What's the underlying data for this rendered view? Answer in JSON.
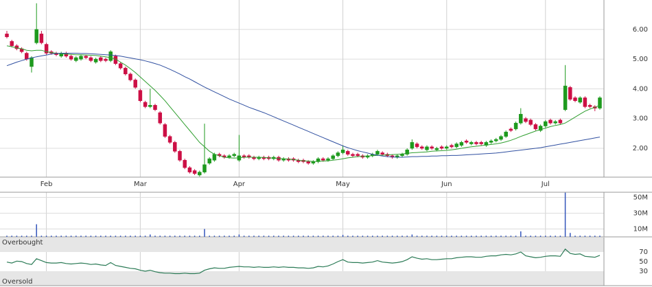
{
  "chart_data": [
    {
      "type": "candlestick",
      "categories": [
        null,
        null,
        null,
        null,
        null,
        null,
        null,
        null,
        "Feb",
        null,
        null,
        null,
        null,
        null,
        null,
        null,
        null,
        null,
        null,
        null,
        null,
        null,
        null,
        null,
        null,
        null,
        null,
        "Mar",
        null,
        null,
        null,
        null,
        null,
        null,
        null,
        null,
        null,
        null,
        null,
        null,
        null,
        null,
        null,
        null,
        null,
        null,
        null,
        "Apr",
        null,
        null,
        null,
        null,
        null,
        null,
        null,
        null,
        null,
        null,
        null,
        null,
        null,
        null,
        null,
        null,
        null,
        null,
        null,
        null,
        "May",
        null,
        null,
        null,
        null,
        null,
        null,
        null,
        null,
        null,
        null,
        null,
        null,
        null,
        null,
        null,
        null,
        null,
        null,
        null,
        null,
        "Jun",
        null,
        null,
        null,
        null,
        null,
        null,
        null,
        null,
        null,
        null,
        null,
        null,
        null,
        null,
        null,
        null,
        null,
        null,
        null,
        "Jul",
        null,
        null,
        null,
        null,
        null,
        null,
        null,
        null,
        null,
        null,
        null
      ],
      "open": [
        5.85,
        5.6,
        5.45,
        5.35,
        5.2,
        4.75,
        5.55,
        5.85,
        5.5,
        5.25,
        5.2,
        5.1,
        5.2,
        5.1,
        4.95,
        5.0,
        5.1,
        5.05,
        4.9,
        5.05,
        5.0,
        4.95,
        5.1,
        4.85,
        4.7,
        4.5,
        4.3,
        3.95,
        3.55,
        3.4,
        3.45,
        3.2,
        2.8,
        2.4,
        2.2,
        1.9,
        1.6,
        1.35,
        1.25,
        1.1,
        1.2,
        1.5,
        1.6,
        1.8,
        1.75,
        1.7,
        1.75,
        1.6,
        1.75,
        1.75,
        1.7,
        1.65,
        1.7,
        1.7,
        1.65,
        1.7,
        1.6,
        1.65,
        1.65,
        1.6,
        1.6,
        1.55,
        1.5,
        1.55,
        1.65,
        1.6,
        1.65,
        1.75,
        1.85,
        1.9,
        1.8,
        1.8,
        1.75,
        1.7,
        1.75,
        1.8,
        1.85,
        1.8,
        1.75,
        1.7,
        1.75,
        1.8,
        2.0,
        2.15,
        2.05,
        1.95,
        2.05,
        1.95,
        2.05,
        2.0,
        2.1,
        2.05,
        2.1,
        2.25,
        2.15,
        2.2,
        2.2,
        2.1,
        2.2,
        2.25,
        2.3,
        2.4,
        2.65,
        2.65,
        2.85,
        3.0,
        2.95,
        2.8,
        2.6,
        2.75,
        2.95,
        2.85,
        2.95,
        3.3,
        4.05,
        3.7,
        3.55,
        3.7,
        3.45,
        3.4,
        3.35
      ],
      "high": [
        5.95,
        5.65,
        5.5,
        5.4,
        5.25,
        5.1,
        6.88,
        5.95,
        5.55,
        5.3,
        5.25,
        5.25,
        5.25,
        5.15,
        5.1,
        5.15,
        5.15,
        5.1,
        5.05,
        5.1,
        5.05,
        5.3,
        5.15,
        4.9,
        4.75,
        4.55,
        4.35,
        4.0,
        3.6,
        4.0,
        3.5,
        3.25,
        2.85,
        2.45,
        2.25,
        1.95,
        1.65,
        1.4,
        1.3,
        1.25,
        2.83,
        1.7,
        1.85,
        1.85,
        1.8,
        1.8,
        1.85,
        2.45,
        1.8,
        1.8,
        1.75,
        1.75,
        1.75,
        1.75,
        1.75,
        1.75,
        1.7,
        1.7,
        1.7,
        1.65,
        1.65,
        1.6,
        1.6,
        1.7,
        1.7,
        1.7,
        1.8,
        1.9,
        2.1,
        1.95,
        1.85,
        1.85,
        1.8,
        1.8,
        1.85,
        1.95,
        1.9,
        1.85,
        1.8,
        1.8,
        1.85,
        2.0,
        2.3,
        2.2,
        2.1,
        2.1,
        2.1,
        2.05,
        2.1,
        2.1,
        2.15,
        2.2,
        2.25,
        2.3,
        2.25,
        2.25,
        2.25,
        2.25,
        2.3,
        2.35,
        2.45,
        2.6,
        2.7,
        2.9,
        3.35,
        3.05,
        3.0,
        2.85,
        2.8,
        2.95,
        3.0,
        2.95,
        3.0,
        4.8,
        4.1,
        3.75,
        3.75,
        3.75,
        3.5,
        3.45,
        3.75
      ],
      "low": [
        5.7,
        5.4,
        5.3,
        5.2,
        4.95,
        4.55,
        5.5,
        5.5,
        5.15,
        5.15,
        5.1,
        5.05,
        5.05,
        4.95,
        4.9,
        4.95,
        5.0,
        4.9,
        4.85,
        4.9,
        4.9,
        4.9,
        4.8,
        4.65,
        4.45,
        4.25,
        4.0,
        3.55,
        3.35,
        3.35,
        3.25,
        2.8,
        2.35,
        2.15,
        1.85,
        1.55,
        1.3,
        1.15,
        1.1,
        1.05,
        1.15,
        1.45,
        1.55,
        1.7,
        1.65,
        1.65,
        1.7,
        1.55,
        1.65,
        1.65,
        1.6,
        1.6,
        1.6,
        1.6,
        1.6,
        1.55,
        1.55,
        1.55,
        1.55,
        1.5,
        1.5,
        1.45,
        1.45,
        1.5,
        1.55,
        1.55,
        1.6,
        1.7,
        1.8,
        1.75,
        1.7,
        1.7,
        1.65,
        1.65,
        1.7,
        1.75,
        1.75,
        1.7,
        1.65,
        1.65,
        1.7,
        1.75,
        1.95,
        2.0,
        1.95,
        1.9,
        1.95,
        1.9,
        1.95,
        1.95,
        2.0,
        2.0,
        2.05,
        2.15,
        2.1,
        2.1,
        2.1,
        2.05,
        2.15,
        2.2,
        2.25,
        2.35,
        2.55,
        2.6,
        2.8,
        2.85,
        2.75,
        2.6,
        2.55,
        2.7,
        2.8,
        2.8,
        2.8,
        3.25,
        3.6,
        3.55,
        3.5,
        3.35,
        3.35,
        3.25,
        3.3
      ],
      "close": [
        5.75,
        5.45,
        5.35,
        5.25,
        5.0,
        5.05,
        6.0,
        5.55,
        5.2,
        5.2,
        5.15,
        5.2,
        5.1,
        5.0,
        5.05,
        5.1,
        5.05,
        4.95,
        5.0,
        4.95,
        4.95,
        5.25,
        4.85,
        4.7,
        4.5,
        4.3,
        4.05,
        3.6,
        3.4,
        3.45,
        3.3,
        2.85,
        2.4,
        2.2,
        1.9,
        1.6,
        1.35,
        1.2,
        1.15,
        1.2,
        1.45,
        1.65,
        1.8,
        1.75,
        1.7,
        1.75,
        1.8,
        1.75,
        1.7,
        1.7,
        1.65,
        1.7,
        1.65,
        1.65,
        1.7,
        1.6,
        1.65,
        1.6,
        1.6,
        1.55,
        1.55,
        1.5,
        1.55,
        1.65,
        1.6,
        1.65,
        1.75,
        1.85,
        1.95,
        1.8,
        1.75,
        1.75,
        1.7,
        1.75,
        1.8,
        1.9,
        1.8,
        1.75,
        1.7,
        1.75,
        1.8,
        1.95,
        2.2,
        2.05,
        2.0,
        2.05,
        2.0,
        2.0,
        2.0,
        2.05,
        2.05,
        2.15,
        2.2,
        2.2,
        2.2,
        2.15,
        2.15,
        2.2,
        2.25,
        2.3,
        2.4,
        2.55,
        2.6,
        2.85,
        3.15,
        2.9,
        2.8,
        2.65,
        2.75,
        2.9,
        2.85,
        2.9,
        2.85,
        4.1,
        3.65,
        3.6,
        3.7,
        3.4,
        3.4,
        3.35,
        3.7
      ],
      "up_color": "#1e9a1e",
      "down_color": "#cc0f45",
      "series": [
        {
          "color": "#2e9e2e",
          "values": [
            5.45,
            5.42,
            5.38,
            5.35,
            5.3,
            5.28,
            5.3,
            5.3,
            5.25,
            5.22,
            5.2,
            5.18,
            5.17,
            5.16,
            5.15,
            5.15,
            5.14,
            5.13,
            5.12,
            5.1,
            5.08,
            5.05,
            5.0,
            4.9,
            4.8,
            4.68,
            4.55,
            4.4,
            4.25,
            4.1,
            3.95,
            3.78,
            3.6,
            3.4,
            3.2,
            3.0,
            2.8,
            2.6,
            2.4,
            2.2,
            2.05,
            1.9,
            1.8,
            1.75,
            1.7,
            1.68,
            1.67,
            1.68,
            1.7,
            1.7,
            1.7,
            1.7,
            1.69,
            1.68,
            1.67,
            1.66,
            1.65,
            1.64,
            1.62,
            1.6,
            1.58,
            1.57,
            1.56,
            1.56,
            1.57,
            1.58,
            1.6,
            1.62,
            1.65,
            1.68,
            1.7,
            1.72,
            1.73,
            1.74,
            1.75,
            1.76,
            1.77,
            1.78,
            1.79,
            1.8,
            1.81,
            1.83,
            1.85,
            1.86,
            1.87,
            1.88,
            1.9,
            1.91,
            1.92,
            1.93,
            1.95,
            1.97,
            2.0,
            2.03,
            2.05,
            2.07,
            2.09,
            2.11,
            2.13,
            2.15,
            2.18,
            2.22,
            2.27,
            2.33,
            2.4,
            2.46,
            2.52,
            2.58,
            2.63,
            2.68,
            2.73,
            2.77,
            2.8,
            2.85,
            2.95,
            3.05,
            3.15,
            3.25,
            3.32,
            3.38,
            3.45
          ]
        },
        {
          "color": "#2f4fa0",
          "values": [
            4.78,
            4.84,
            4.9,
            4.95,
            5.0,
            5.04,
            5.08,
            5.11,
            5.14,
            5.17,
            5.19,
            5.2,
            5.2,
            5.2,
            5.2,
            5.19,
            5.19,
            5.18,
            5.17,
            5.16,
            5.15,
            5.14,
            5.12,
            5.1,
            5.07,
            5.04,
            5.01,
            4.98,
            4.94,
            4.9,
            4.85,
            4.8,
            4.73,
            4.66,
            4.58,
            4.5,
            4.41,
            4.33,
            4.24,
            4.15,
            4.06,
            3.98,
            3.9,
            3.82,
            3.74,
            3.66,
            3.59,
            3.52,
            3.45,
            3.38,
            3.32,
            3.26,
            3.2,
            3.13,
            3.06,
            2.99,
            2.92,
            2.85,
            2.78,
            2.71,
            2.64,
            2.57,
            2.5,
            2.43,
            2.36,
            2.29,
            2.22,
            2.15,
            2.08,
            2.02,
            1.97,
            1.92,
            1.88,
            1.84,
            1.8,
            1.77,
            1.74,
            1.72,
            1.71,
            1.7,
            1.7,
            1.71,
            1.72,
            1.72,
            1.73,
            1.73,
            1.74,
            1.74,
            1.75,
            1.75,
            1.76,
            1.76,
            1.77,
            1.78,
            1.79,
            1.8,
            1.81,
            1.82,
            1.83,
            1.84,
            1.86,
            1.88,
            1.9,
            1.92,
            1.94,
            1.96,
            1.98,
            2.0,
            2.02,
            2.05,
            2.08,
            2.11,
            2.14,
            2.17,
            2.2,
            2.23,
            2.26,
            2.29,
            2.32,
            2.35,
            2.38
          ]
        }
      ],
      "ylim": [
        1.03,
        6.99
      ],
      "yticks": [
        {
          "value": 6,
          "label": "6.00"
        },
        {
          "value": 5,
          "label": "5.00"
        },
        {
          "value": 4,
          "label": "4.00"
        },
        {
          "value": 3,
          "label": "3.00"
        },
        {
          "value": 2,
          "label": "2.00"
        }
      ],
      "grid": true
    },
    {
      "type": "bar",
      "values": [
        1.5,
        1.5,
        1.5,
        1.5,
        1.5,
        1.5,
        16,
        1.5,
        1.5,
        1.5,
        1.5,
        1.5,
        1.5,
        1.5,
        1.5,
        1.5,
        1.5,
        1.5,
        1.5,
        1.5,
        1.5,
        1.5,
        1.5,
        1.5,
        1.5,
        1.5,
        1.5,
        1.5,
        1.5,
        3,
        1.5,
        1.5,
        1.5,
        1.5,
        1.5,
        1.5,
        1.5,
        1.5,
        1.5,
        1.5,
        10,
        1.5,
        1.5,
        1.5,
        1.5,
        1.5,
        1.5,
        3,
        1.5,
        1.5,
        1.5,
        1.5,
        1.5,
        1.5,
        1.5,
        1.5,
        1.5,
        1.5,
        1.5,
        1.5,
        1.5,
        1.5,
        1.5,
        1.5,
        1.5,
        1.5,
        1.5,
        1.5,
        2.5,
        1.5,
        1.5,
        1.5,
        1.5,
        1.5,
        1.5,
        1.5,
        1.5,
        1.5,
        1.5,
        1.5,
        1.5,
        1.5,
        3,
        1.5,
        1.5,
        1.5,
        1.5,
        1.5,
        1.5,
        1.5,
        1.5,
        1.5,
        1.5,
        1.5,
        1.5,
        1.5,
        1.5,
        1.5,
        1.5,
        1.5,
        1.5,
        1.5,
        1.5,
        1.5,
        7,
        1.5,
        1.5,
        1.5,
        1.5,
        1.5,
        1.5,
        1.5,
        1.5,
        56,
        5,
        1.5,
        1.5,
        1.5,
        1.5,
        1.5,
        1.5
      ],
      "color": "#3355bb",
      "ylim": [
        0,
        56.5
      ],
      "yticks": [
        {
          "value": 50,
          "label": "50M"
        },
        {
          "value": 30,
          "label": "30M"
        },
        {
          "value": 10,
          "label": "10M"
        }
      ],
      "grid": true
    },
    {
      "type": "line",
      "values": [
        49,
        47,
        51,
        50,
        46,
        44,
        56,
        52,
        48,
        47,
        47,
        48,
        46,
        45,
        46,
        47,
        46,
        44,
        45,
        43,
        42,
        48,
        42,
        40,
        38,
        36,
        35,
        32,
        30,
        32,
        29,
        27,
        26,
        26,
        25,
        25,
        26,
        25,
        25,
        26,
        32,
        35,
        37,
        36,
        36,
        38,
        39,
        40,
        39,
        39,
        38,
        39,
        38,
        38,
        39,
        38,
        39,
        38,
        38,
        37,
        37,
        36,
        37,
        40,
        39,
        41,
        45,
        50,
        54,
        49,
        48,
        48,
        47,
        48,
        49,
        52,
        49,
        48,
        47,
        48,
        50,
        54,
        60,
        57,
        55,
        56,
        54,
        54,
        55,
        56,
        56,
        58,
        59,
        60,
        60,
        59,
        59,
        61,
        62,
        62,
        64,
        65,
        64,
        66,
        70,
        62,
        60,
        58,
        59,
        61,
        62,
        62,
        61,
        76,
        67,
        65,
        66,
        61,
        60,
        59,
        63
      ],
      "color": "#2a7a55",
      "ylim": [
        0,
        100
      ],
      "yticks": [
        70,
        50,
        30
      ],
      "bands": [
        {
          "label": "Overbought",
          "range": [
            70,
            100
          ]
        },
        {
          "label": "Oversold",
          "range": [
            0,
            30
          ]
        }
      ],
      "band_color": "#e6e6e6"
    }
  ]
}
